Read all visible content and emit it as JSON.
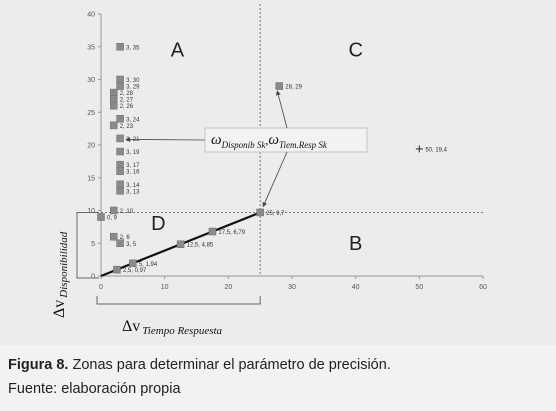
{
  "figure": {
    "caption_label": "Figura 8.",
    "caption_text": " Zonas para determinar el parámetro de precisión.",
    "source": "Fuente: elaboración propia"
  },
  "chart_data": {
    "type": "scatter",
    "title": "",
    "xlim": [
      0,
      60
    ],
    "ylim": [
      0,
      40
    ],
    "x_ticks": [
      "0",
      "10",
      "20",
      "30",
      "40",
      "50",
      "60"
    ],
    "y_ticks": [
      "0",
      "5",
      "10",
      "15",
      "20",
      "25",
      "30",
      "35",
      "40"
    ],
    "xlabel": {
      "symbol": "Δv",
      "sub": "Tiempo Respuesta"
    },
    "ylabel": {
      "symbol": "Δv",
      "sub": "Disponibilidad"
    },
    "threshold": {
      "x": 25,
      "y": 9.7
    },
    "zones": [
      {
        "label": "A",
        "x": 12,
        "y": 33.5
      },
      {
        "label": "B",
        "x": 40,
        "y": 4
      },
      {
        "label": "C",
        "x": 40,
        "y": 33.5
      },
      {
        "label": "D",
        "x": 9,
        "y": 7
      }
    ],
    "points": [
      {
        "x": 3,
        "y": 35,
        "label": "3, 35"
      },
      {
        "x": 3,
        "y": 30,
        "label": "3, 30"
      },
      {
        "x": 3,
        "y": 29,
        "label": "3, 29"
      },
      {
        "x": 2,
        "y": 28,
        "label": "2, 28"
      },
      {
        "x": 2,
        "y": 27,
        "label": "2, 27"
      },
      {
        "x": 2,
        "y": 26,
        "label": "2, 26"
      },
      {
        "x": 3,
        "y": 24,
        "label": "3, 24"
      },
      {
        "x": 2,
        "y": 23,
        "label": "2, 23"
      },
      {
        "x": 3,
        "y": 21,
        "label": "3, 21"
      },
      {
        "x": 3,
        "y": 19,
        "label": "3, 19"
      },
      {
        "x": 3,
        "y": 17,
        "label": "3, 17"
      },
      {
        "x": 3,
        "y": 16,
        "label": "3, 16"
      },
      {
        "x": 3,
        "y": 14,
        "label": "3, 14"
      },
      {
        "x": 3,
        "y": 13,
        "label": "3, 13"
      },
      {
        "x": 2,
        "y": 10,
        "label": "2, 10"
      },
      {
        "x": 0,
        "y": 9,
        "label": "0, 9"
      },
      {
        "x": 2,
        "y": 6,
        "label": "2, 6"
      },
      {
        "x": 3,
        "y": 5,
        "label": "3, 5"
      },
      {
        "x": 28,
        "y": 29,
        "label": "28, 29"
      },
      {
        "x": 25,
        "y": 9.7,
        "label": "25, 9,7"
      },
      {
        "x": 17.5,
        "y": 6.79,
        "label": "17,5, 6,79"
      },
      {
        "x": 12.5,
        "y": 4.85,
        "label": "12,5, 4,85"
      },
      {
        "x": 5,
        "y": 1.94,
        "label": "5, 1,94"
      },
      {
        "x": 2.5,
        "y": 0.97,
        "label": "2,5, 0,97"
      },
      {
        "x": 50,
        "y": 19.4,
        "label": "50, 19,4",
        "marker": "plus"
      }
    ],
    "regression_line": {
      "from": [
        0,
        0
      ],
      "to": [
        25,
        9.7
      ]
    },
    "callout": {
      "omega": "ω",
      "sub1": "Disponib  Sk",
      "sep": ",",
      "sub2": "Tiem.Resp  Sk"
    }
  }
}
